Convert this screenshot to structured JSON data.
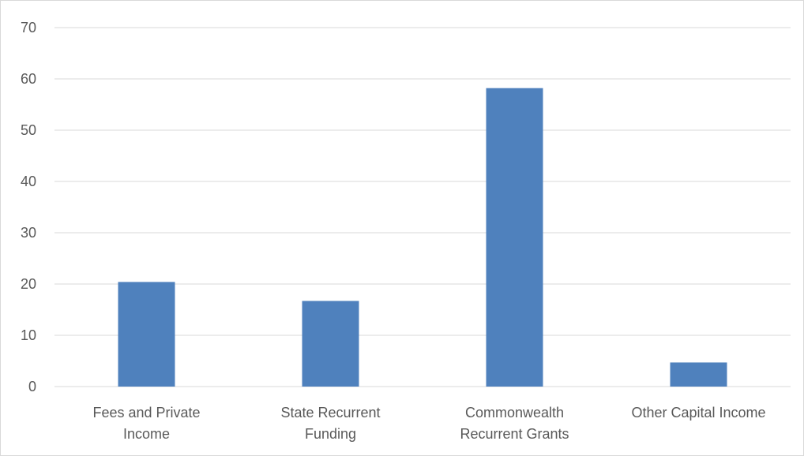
{
  "chart_data": {
    "type": "bar",
    "categories": [
      [
        "Fees and Private",
        "Income"
      ],
      [
        "State Recurrent",
        "Funding"
      ],
      [
        "Commonwealth",
        "Recurrent Grants"
      ],
      [
        "Other Capital Income"
      ]
    ],
    "values": [
      20.4,
      16.7,
      58.2,
      4.7
    ],
    "title": "",
    "xlabel": "",
    "ylabel": "",
    "ylim": [
      0,
      70
    ],
    "yticks": [
      0,
      10,
      20,
      30,
      40,
      50,
      60,
      70
    ],
    "grid": true,
    "bar_color": "#4f81bd",
    "grid_color": "#d9d9d9",
    "text_color": "#595959"
  }
}
